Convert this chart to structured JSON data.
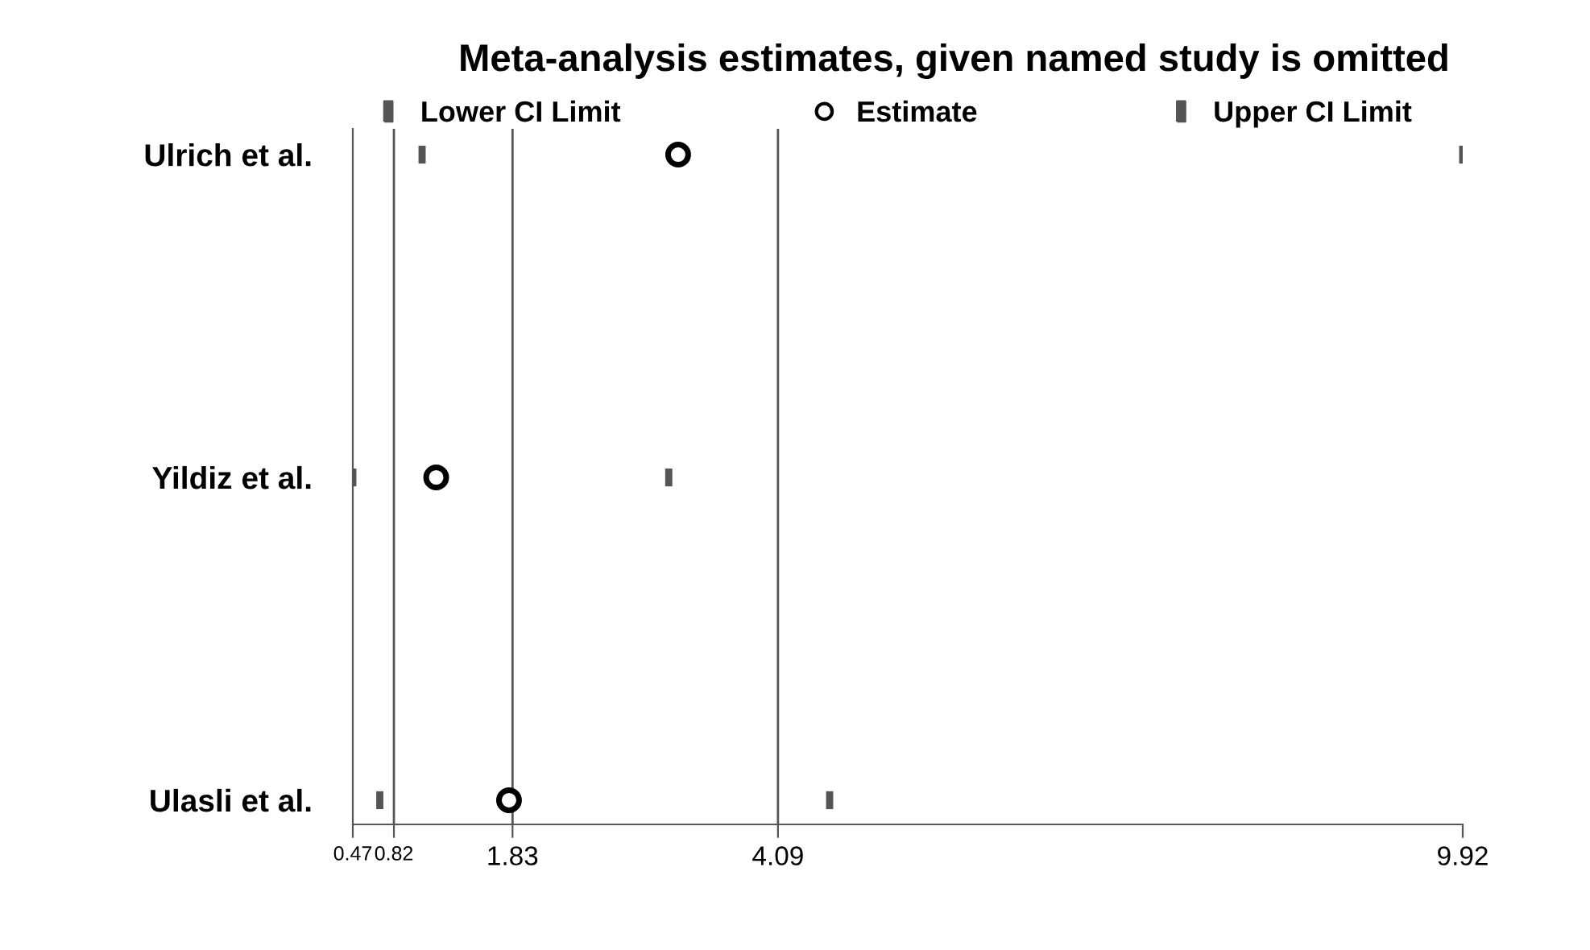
{
  "chart_data": {
    "type": "scatter",
    "orientation": "horizontal",
    "title": "Meta-analysis estimates, given named study is omitted",
    "categories": [
      "Ulrich et al.",
      "Yildiz et al.",
      "Ulasli et al."
    ],
    "series": [
      {
        "name": "Lower CI Limit",
        "color": "#555555",
        "values": [
          1.06,
          0.47,
          0.7
        ]
      },
      {
        "name": "Estimate",
        "color": "#000000",
        "marker": "circle",
        "values": [
          3.24,
          1.18,
          1.8
        ]
      },
      {
        "name": "Upper CI Limit",
        "color": "#555555",
        "values": [
          9.92,
          3.16,
          4.53
        ]
      }
    ],
    "xlim": [
      0.47,
      9.92
    ],
    "xticks": [
      0.47,
      0.82,
      1.83,
      4.09,
      9.92
    ],
    "ref_lines": [
      {
        "axis": "x",
        "value": 0.82,
        "color": "#555555"
      },
      {
        "axis": "x",
        "value": 1.83,
        "color": "#555555"
      },
      {
        "axis": "x",
        "value": 4.09,
        "color": "#555555"
      }
    ],
    "grid": false,
    "legend": "top"
  }
}
